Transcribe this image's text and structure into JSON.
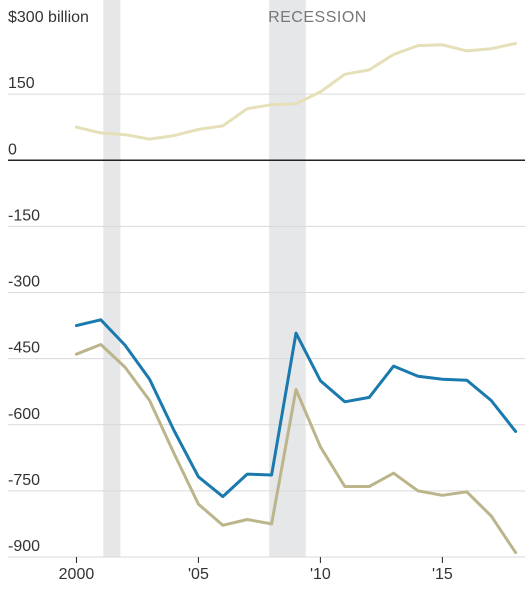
{
  "chart_data": {
    "type": "line",
    "recession_label": "RECESSION",
    "recessions": [
      [
        2001.1,
        2001.8
      ],
      [
        2007.9,
        2009.4
      ]
    ],
    "x": [
      2000,
      2001,
      2002,
      2003,
      2004,
      2005,
      2006,
      2007,
      2008,
      2009,
      2010,
      2011,
      2012,
      2013,
      2014,
      2015,
      2016,
      2017,
      2018
    ],
    "xlim": [
      1999.9,
      2018.1
    ],
    "x_ticks": [
      2000,
      2005,
      2010,
      2015
    ],
    "x_tick_labels": [
      "2000",
      "'05",
      "'10",
      "'15"
    ],
    "ylim": [
      -900,
      300
    ],
    "y_ticks": [
      300,
      150,
      0,
      -150,
      -300,
      -450,
      -600,
      -750,
      -900
    ],
    "y_tick_labels": [
      "$300 billion",
      "150",
      "0",
      "-150",
      "-300",
      "-450",
      "-600",
      "-750",
      "-900"
    ],
    "series": [
      {
        "color": "#e5e0b8",
        "values": [
          75,
          62,
          58,
          48,
          56,
          70,
          78,
          117,
          126,
          128,
          155,
          195,
          205,
          240,
          260,
          262,
          248,
          253,
          265
        ]
      },
      {
        "color": "#1a7aad",
        "values": [
          -375,
          -362,
          -420,
          -497,
          -613,
          -718,
          -763,
          -712,
          -714,
          -392,
          -500,
          -548,
          -538,
          -467,
          -490,
          -497,
          -499,
          -545,
          -615
        ]
      },
      {
        "color": "#bcb58c",
        "values": [
          -440,
          -418,
          -470,
          -545,
          -665,
          -780,
          -828,
          -815,
          -825,
          -520,
          -650,
          -740,
          -740,
          -710,
          -750,
          -760,
          -752,
          -807,
          -890
        ]
      }
    ]
  }
}
